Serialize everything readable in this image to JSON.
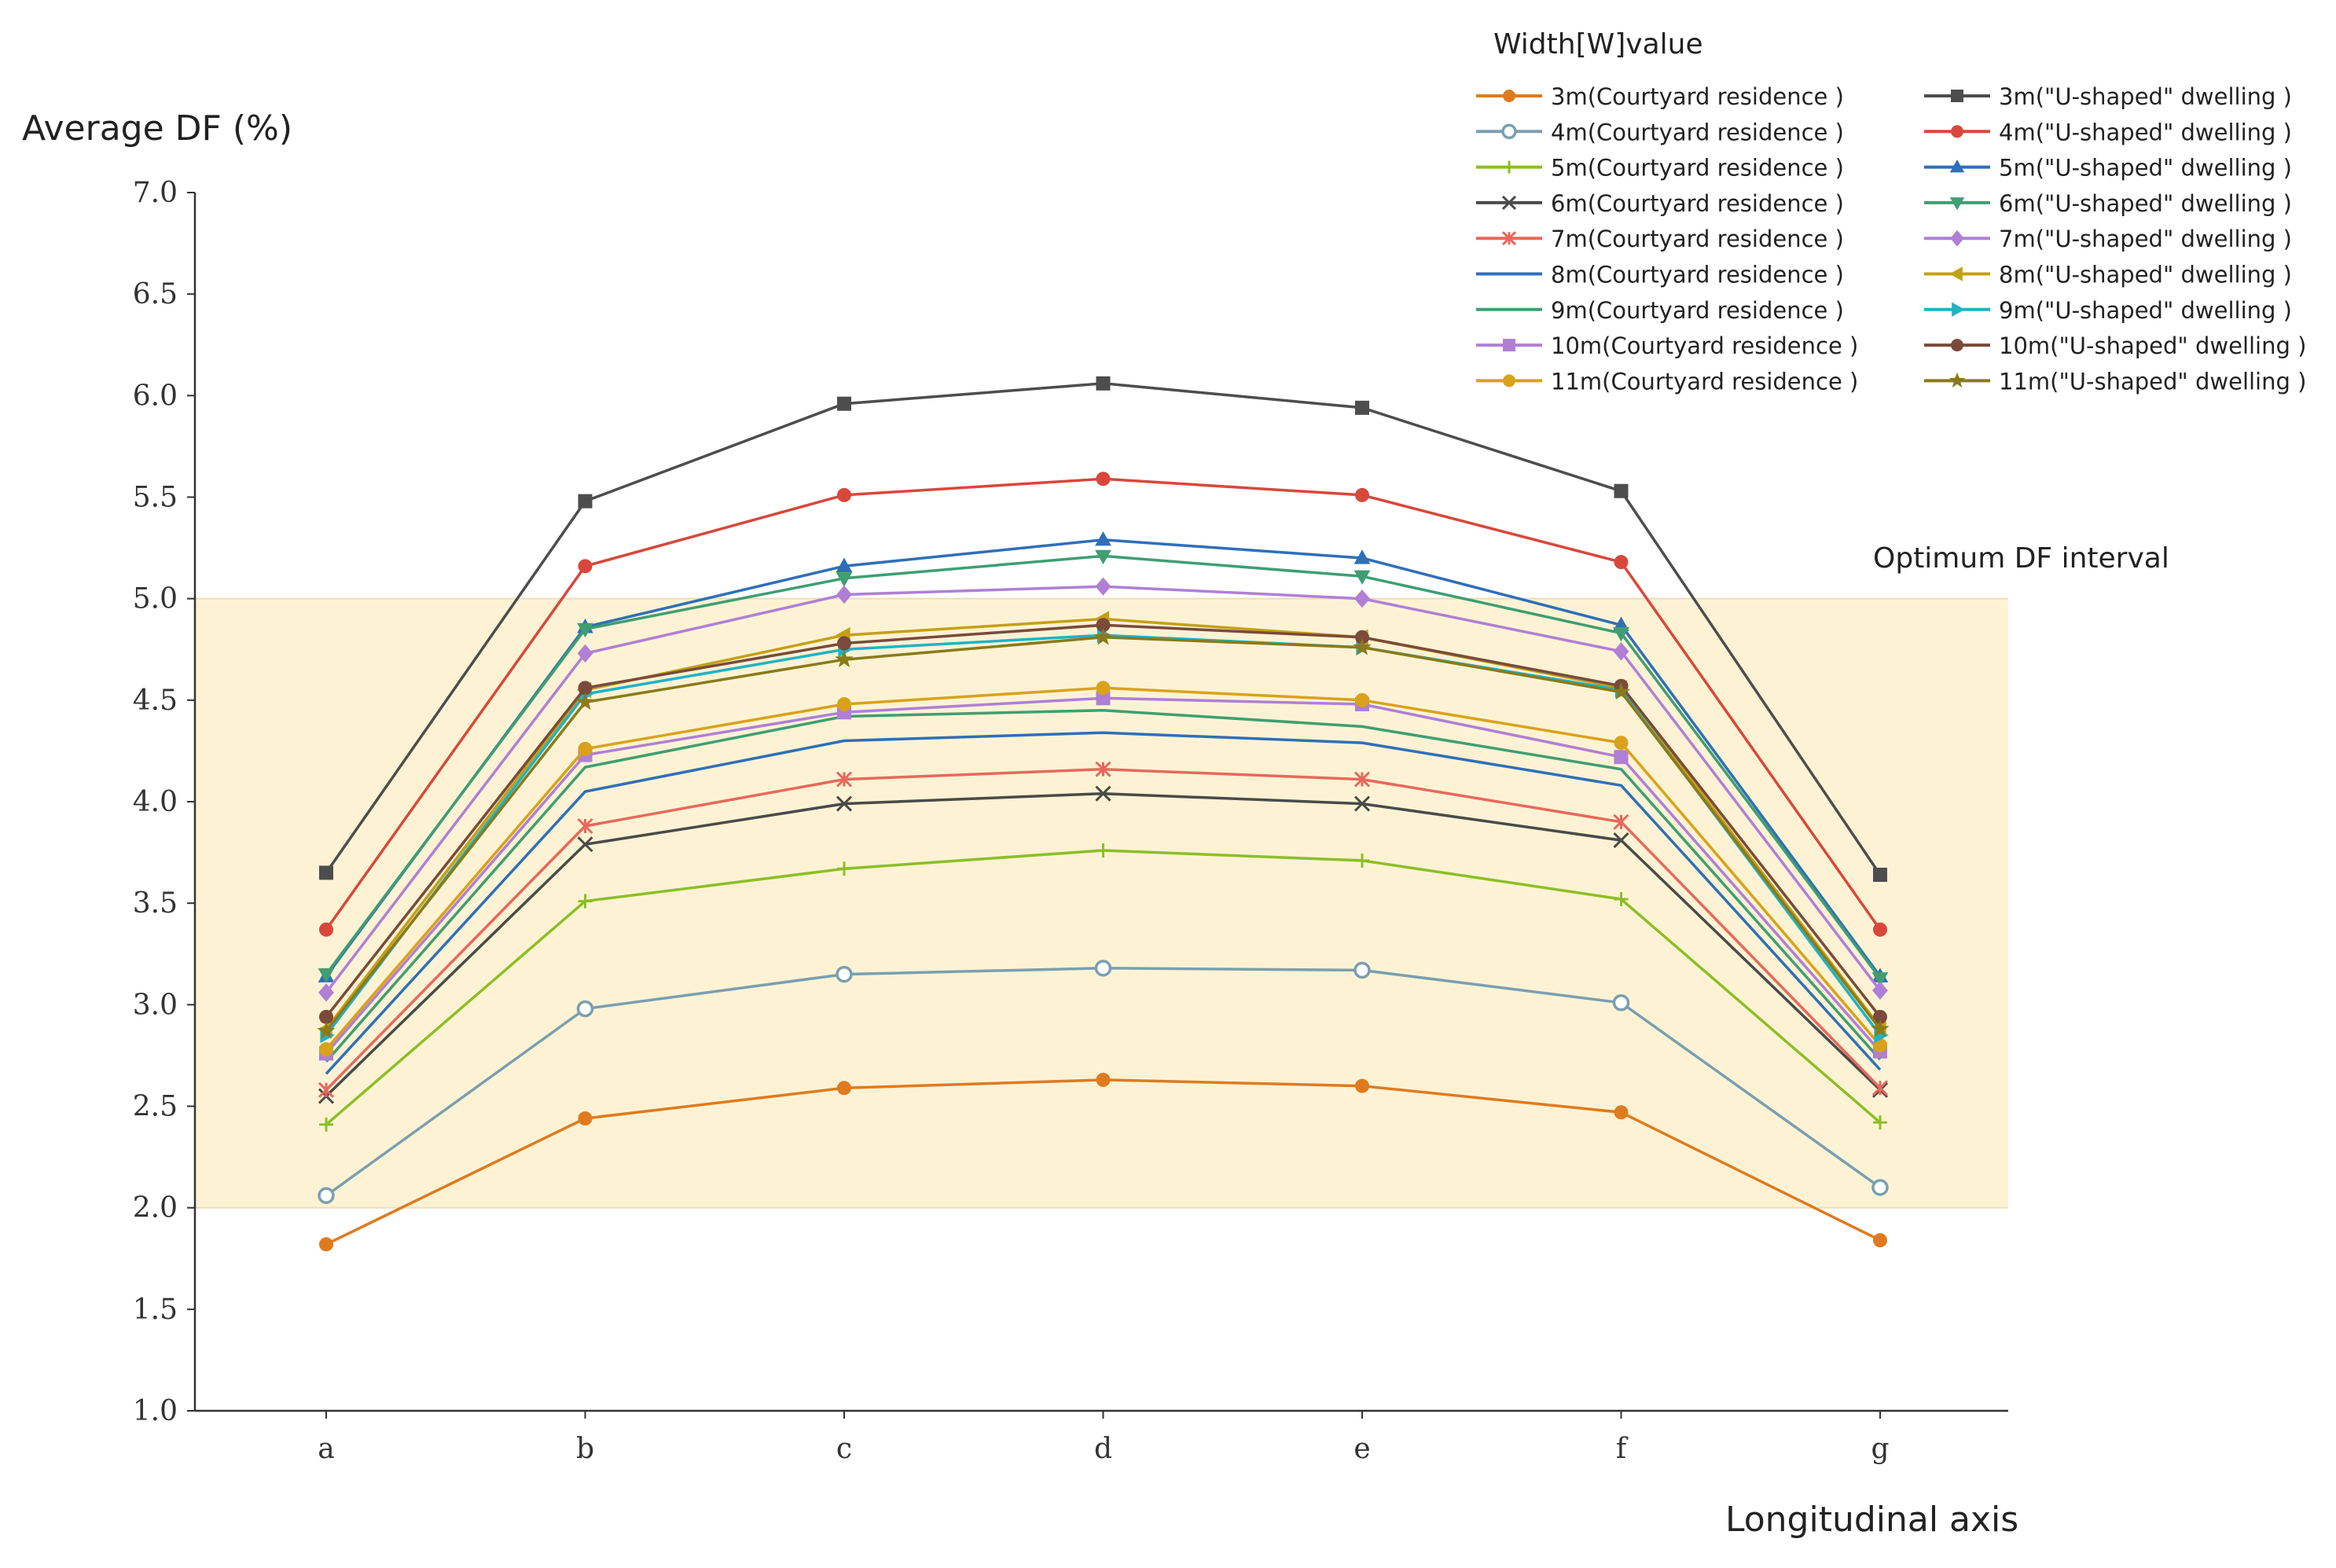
{
  "chart_data": {
    "type": "line",
    "title": "",
    "ylabel": "Average DF (%)",
    "xlabel": "Longitudinal axis",
    "ylim": [
      1.0,
      7.0
    ],
    "yticks": [
      "1.0",
      "1.5",
      "2.0",
      "2.5",
      "3.0",
      "3.5",
      "4.0",
      "4.5",
      "5.0",
      "5.5",
      "6.0",
      "6.5",
      "7.0"
    ],
    "categories": [
      "a",
      "b",
      "c",
      "d",
      "e",
      "f",
      "g"
    ],
    "grid": false,
    "legend_title": "Width[W]value",
    "legend_position": "top-right",
    "band": {
      "from": 2.0,
      "to": 5.0,
      "label": "Optimum DF interval",
      "color": "#fdf3d4"
    },
    "series": [
      {
        "name": "3m(Courtyard residence )",
        "color": "#e07a1f",
        "marker": "circle",
        "values": [
          1.82,
          2.44,
          2.59,
          2.63,
          2.6,
          2.47,
          1.84
        ]
      },
      {
        "name": "4m(Courtyard residence )",
        "color": "#7a9fb0",
        "marker": "circle-open",
        "values": [
          2.06,
          2.98,
          3.15,
          3.18,
          3.17,
          3.01,
          2.1
        ]
      },
      {
        "name": "5m(Courtyard residence )",
        "color": "#8cbf26",
        "marker": "plus",
        "values": [
          2.41,
          3.51,
          3.67,
          3.76,
          3.71,
          3.52,
          2.42
        ]
      },
      {
        "name": "6m(Courtyard residence )",
        "color": "#4a4a4a",
        "marker": "x",
        "values": [
          2.55,
          3.79,
          3.99,
          4.04,
          3.99,
          3.81,
          2.58
        ]
      },
      {
        "name": "7m(Courtyard residence )",
        "color": "#e8685c",
        "marker": "asterisk",
        "values": [
          2.58,
          3.88,
          4.11,
          4.16,
          4.11,
          3.9,
          2.59
        ]
      },
      {
        "name": "8m(Courtyard residence )",
        "color": "#2f6fb8",
        "marker": "none",
        "values": [
          2.66,
          4.05,
          4.3,
          4.34,
          4.29,
          4.08,
          2.68
        ]
      },
      {
        "name": "9m(Courtyard residence )",
        "color": "#3f9e72",
        "marker": "none",
        "values": [
          2.72,
          4.17,
          4.42,
          4.45,
          4.37,
          4.16,
          2.73
        ]
      },
      {
        "name": "10m(Courtyard residence )",
        "color": "#b07fd6",
        "marker": "square",
        "values": [
          2.76,
          4.23,
          4.44,
          4.51,
          4.48,
          4.22,
          2.77
        ]
      },
      {
        "name": "11m(Courtyard residence )",
        "color": "#d9a21a",
        "marker": "circle",
        "values": [
          2.78,
          4.26,
          4.48,
          4.56,
          4.5,
          4.29,
          2.8
        ]
      },
      {
        "name": "3m(\"U-shaped\" dwelling )",
        "color": "#4d4d4d",
        "marker": "square",
        "values": [
          3.65,
          5.48,
          5.96,
          6.06,
          5.94,
          5.53,
          3.64
        ]
      },
      {
        "name": "4m(\"U-shaped\" dwelling )",
        "color": "#d9473c",
        "marker": "circle",
        "values": [
          3.37,
          5.16,
          5.51,
          5.59,
          5.51,
          5.18,
          3.37
        ]
      },
      {
        "name": "5m(\"U-shaped\" dwelling )",
        "color": "#2f6fb8",
        "marker": "triangle",
        "values": [
          3.14,
          4.86,
          5.16,
          5.29,
          5.2,
          4.87,
          3.14
        ]
      },
      {
        "name": "6m(\"U-shaped\" dwelling )",
        "color": "#3f9e72",
        "marker": "triangle-down",
        "values": [
          3.15,
          4.85,
          5.1,
          5.21,
          5.11,
          4.83,
          3.13
        ]
      },
      {
        "name": "7m(\"U-shaped\" dwelling )",
        "color": "#b07fd6",
        "marker": "diamond",
        "values": [
          3.06,
          4.73,
          5.02,
          5.06,
          5.0,
          4.74,
          3.07
        ]
      },
      {
        "name": "8m(\"U-shaped\" dwelling )",
        "color": "#c4a015",
        "marker": "triangle-left",
        "values": [
          2.88,
          4.55,
          4.82,
          4.9,
          4.81,
          4.56,
          2.89
        ]
      },
      {
        "name": "9m(\"U-shaped\" dwelling )",
        "color": "#1fb3c4",
        "marker": "triangle-right",
        "values": [
          2.85,
          4.53,
          4.75,
          4.82,
          4.76,
          4.55,
          2.85
        ]
      },
      {
        "name": "10m(\"U-shaped\" dwelling )",
        "color": "#7a4a3a",
        "marker": "circle",
        "values": [
          2.94,
          4.56,
          4.78,
          4.87,
          4.81,
          4.57,
          2.94
        ]
      },
      {
        "name": "11m(\"U-shaped\" dwelling )",
        "color": "#8a7a1a",
        "marker": "star",
        "values": [
          2.87,
          4.49,
          4.7,
          4.81,
          4.76,
          4.54,
          2.88
        ]
      }
    ]
  }
}
